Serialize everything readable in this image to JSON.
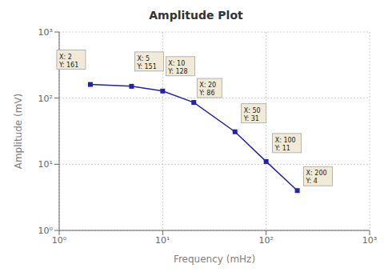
{
  "chart_data": {
    "type": "line",
    "title": "Amplitude Plot",
    "x_label": "Frequency (mHz)",
    "y_label": "Amplitude (mV)",
    "x": [
      2,
      5,
      10,
      20,
      50,
      100,
      200
    ],
    "values": [
      161,
      151,
      128,
      86,
      31,
      11,
      4
    ],
    "color": "#2222aa",
    "marker": "square",
    "log": true,
    "grid": true,
    "xlim": [
      1,
      1000
    ],
    "ylim": [
      1,
      1000
    ],
    "xticks": [
      {
        "value": 1,
        "label": "10⁰"
      },
      {
        "value": 10,
        "label": "10¹"
      },
      {
        "value": 100,
        "label": "10²"
      },
      {
        "value": 1000,
        "label": "10³"
      }
    ],
    "yticks": [
      {
        "value": 1,
        "label": "10⁰"
      },
      {
        "value": 10,
        "label": "10¹"
      },
      {
        "value": 100,
        "label": "10²"
      },
      {
        "value": 1000,
        "label": "10³"
      }
    ],
    "annotations": [
      {
        "text": "X: 2\nY: 161",
        "x": 2,
        "y": 161
      },
      {
        "text": "X: 5\nY: 151",
        "x": 5,
        "y": 151
      },
      {
        "text": "X: 10\nY: 128",
        "x": 10,
        "y": 128
      },
      {
        "text": "X: 20\nY: 86",
        "x": 20,
        "y": 86
      },
      {
        "text": "X: 50\nY: 31",
        "x": 50,
        "y": 31
      },
      {
        "text": "X: 100\nY: 11",
        "x": 100,
        "y": 11
      },
      {
        "text": "X: 200\nY: 4",
        "x": 200,
        "y": 4
      }
    ]
  }
}
